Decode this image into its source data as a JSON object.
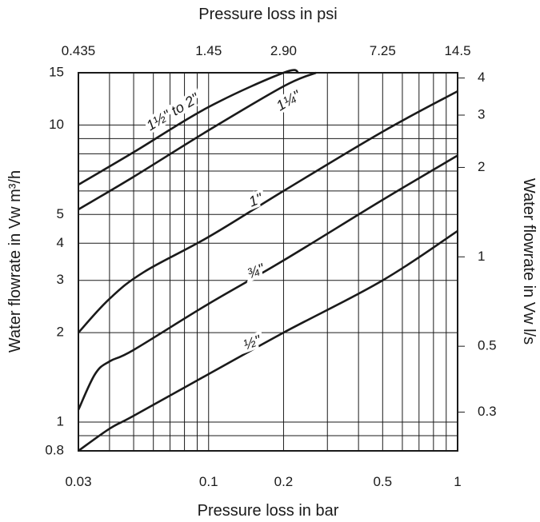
{
  "chart_data": {
    "type": "line",
    "scale": "log-log",
    "grid": true,
    "x": {
      "label": "Pressure loss in bar",
      "range": [
        0.03,
        1
      ],
      "ticks": [
        0.03,
        0.1,
        0.2,
        0.5,
        1
      ],
      "tick_labels": [
        "0.03",
        "0.1",
        "0.2",
        "0.5",
        "1"
      ]
    },
    "x_top": {
      "label": "Pressure loss in psi",
      "range": [
        0.435,
        14.5
      ],
      "ticks": [
        0.435,
        1.45,
        2.9,
        7.25,
        14.5
      ],
      "tick_labels": [
        "0.435",
        "1.45",
        "2.90",
        "7.25",
        "14.5"
      ]
    },
    "y": {
      "label": "Water flowrate in Vw m³/h",
      "range": [
        0.8,
        15
      ],
      "ticks": [
        0.8,
        1,
        2,
        3,
        4,
        5,
        10,
        15
      ],
      "tick_labels": [
        "0.8",
        "1",
        "2",
        "3",
        "4",
        "5",
        "10",
        "15"
      ]
    },
    "y_right": {
      "label": "Water flowrate in Vw l/s",
      "ticks": [
        0.3,
        0.5,
        1,
        2,
        3,
        4
      ],
      "tick_labels": [
        "0.3",
        "0.5",
        "1",
        "2",
        "3",
        "4"
      ]
    },
    "series": [
      {
        "name": "1½\" to 2\"",
        "x": [
          0.03,
          0.05,
          0.1,
          0.2,
          0.23
        ],
        "y": [
          6.3,
          8.1,
          11.5,
          15.0,
          15.0
        ]
      },
      {
        "name": "1¼\"",
        "x": [
          0.03,
          0.05,
          0.1,
          0.2,
          0.27
        ],
        "y": [
          5.2,
          6.7,
          9.6,
          13.5,
          15.0
        ]
      },
      {
        "name": "1\"",
        "x": [
          0.03,
          0.04,
          0.055,
          0.1,
          0.2,
          0.5,
          1.0
        ],
        "y": [
          2.0,
          2.6,
          3.2,
          4.2,
          6.0,
          9.5,
          13.0
        ]
      },
      {
        "name": "¾\"",
        "x": [
          0.03,
          0.035,
          0.04,
          0.05,
          0.1,
          0.2,
          0.5,
          1.0
        ],
        "y": [
          1.1,
          1.45,
          1.6,
          1.75,
          2.5,
          3.5,
          5.6,
          7.9
        ]
      },
      {
        "name": "½\"",
        "x": [
          0.03,
          0.04,
          0.05,
          0.1,
          0.2,
          0.5,
          1.0
        ],
        "y": [
          0.8,
          0.95,
          1.05,
          1.45,
          2.0,
          3.0,
          4.4
        ]
      }
    ],
    "curve_labels": [
      "1½\" to 2\"",
      "1¼\"",
      "1\"",
      "¾\"",
      "½\""
    ]
  }
}
